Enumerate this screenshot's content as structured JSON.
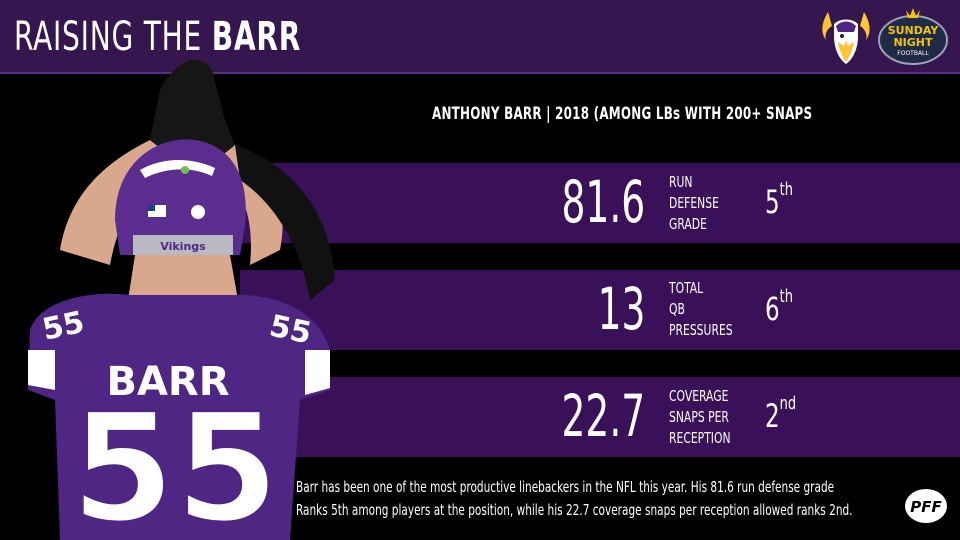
{
  "header": {
    "title_prefix": "RAISING THE ",
    "title_bold": "BARR"
  },
  "subtitle": "ANTHONY BARR | 2018 (AMONG LBs WITH 200+ SNAPS",
  "stats": [
    {
      "value": "81.6",
      "label_lines": [
        "RUN",
        "DEFENSE",
        "GRADE"
      ],
      "rank_num": "5",
      "rank_suffix": "th"
    },
    {
      "value": "13",
      "label_lines": [
        "TOTAL",
        "QB",
        "PRESSURES"
      ],
      "rank_num": "6",
      "rank_suffix": "th"
    },
    {
      "value": "22.7",
      "label_lines": [
        "COVERAGE",
        "SNAPS PER",
        "RECEPTION"
      ],
      "rank_num": "2",
      "rank_suffix": "nd"
    }
  ],
  "caption": {
    "line1": "Barr has been one of the most productive linebackers in the NFL this year. His 81.6 run defense grade",
    "line2": "Ranks 5th among players at the position, while his 22.7 coverage snaps per reception allowed ranks 2nd."
  },
  "player": {
    "name": "BARR",
    "number": "55",
    "helmet_text": "Vikings"
  },
  "logos": {
    "snf_line1": "SUNDAY",
    "snf_line2": "NIGHT",
    "snf_line3": "FOOTBALL",
    "pff": "PFF"
  },
  "colors": {
    "purple_header": "#35164f",
    "purple_band": "#3a1058",
    "jersey": "#4f2683",
    "gold": "#ffc62f"
  }
}
